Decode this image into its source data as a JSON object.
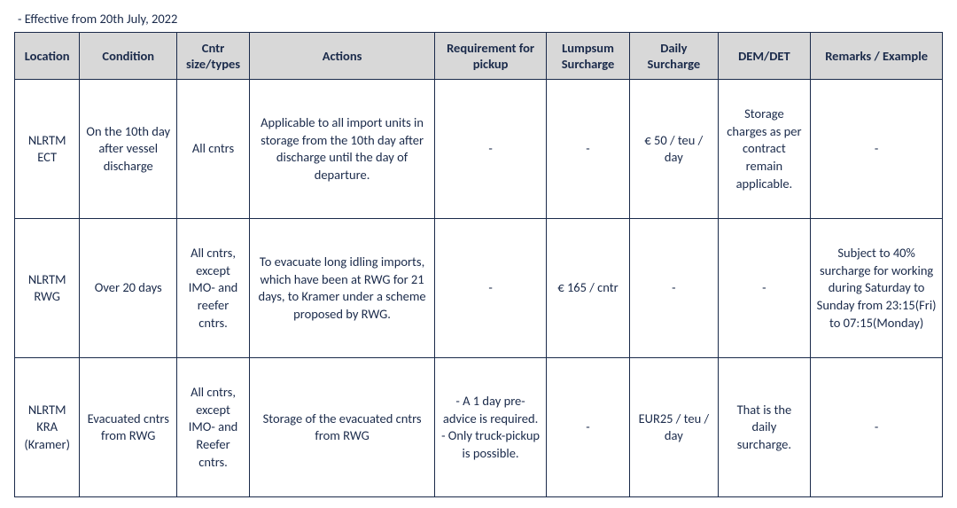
{
  "effective_line": "- Effective from 20th July, 2022",
  "columns": [
    "Location",
    "Condition",
    "Cntr size/types",
    "Actions",
    "Requirement for pickup",
    "Lumpsum Surcharge",
    "Daily Surcharge",
    "DEM/DET",
    "Remarks / Example"
  ],
  "rows": [
    {
      "location": "NLRTM ECT",
      "condition": "On the 10th day after vessel discharge",
      "size": "All cntrs",
      "actions": "Applicable to all import units in storage from the 10th day after discharge until the day of departure.",
      "requirement": "-",
      "lumpsum": "-",
      "daily": "€ 50 / teu / day",
      "demdet": "Storage charges as per contract remain applicable.",
      "remarks": "-"
    },
    {
      "location": "NLRTM RWG",
      "condition": "Over 20 days",
      "size": "All cntrs, except IMO- and reefer cntrs.",
      "actions": "To evacuate long idling imports, which have been at RWG for 21 days, to Kramer under a scheme proposed by RWG.",
      "requirement": "-",
      "lumpsum": "€ 165 / cntr",
      "daily": "-",
      "demdet": "-",
      "remarks": "Subject to 40% surcharge for working during Saturday to Sunday from 23:15(Fri) to 07:15(Monday)"
    },
    {
      "location": "NLRTM KRA (Kramer)",
      "condition": "Evacuated cntrs from RWG",
      "size": "All cntrs, except IMO- and Reefer cntrs.",
      "actions": "Storage of the evacuated cntrs from RWG",
      "requirement": "- A 1 day pre-advice is required.\n- Only truck-pickup is possible.",
      "lumpsum": "-",
      "daily": "EUR25 / teu / day",
      "demdet": "That is the daily surcharge.",
      "remarks": "-"
    }
  ]
}
